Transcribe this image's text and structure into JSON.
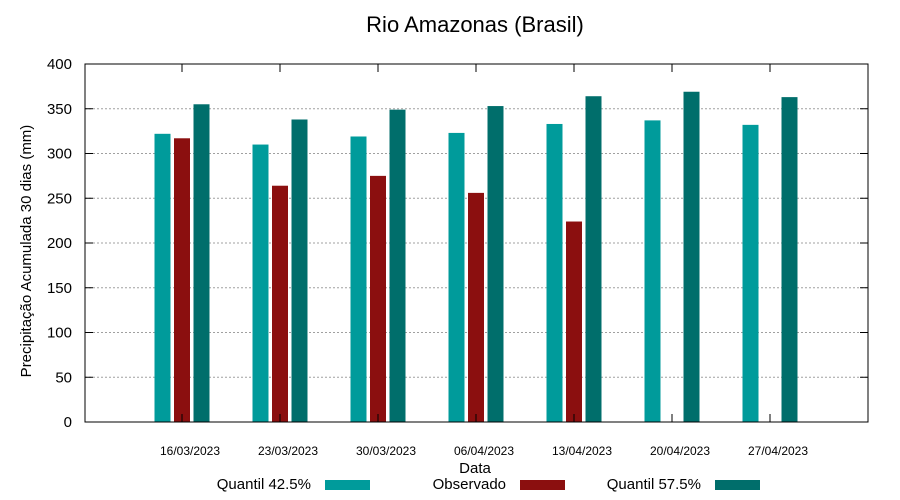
{
  "chart_data": {
    "type": "bar",
    "title": "Rio Amazonas (Brasil)",
    "xlabel": "Data",
    "ylabel": "Precipitação Acumulada 30 dias (mm)",
    "ylim": [
      0,
      400
    ],
    "yticks": [
      "0",
      "50",
      "100",
      "150",
      "200",
      "250",
      "300",
      "350",
      "400"
    ],
    "grid": true,
    "categories": [
      "16/03/2023",
      "23/03/2023",
      "30/03/2023",
      "06/04/2023",
      "13/04/2023",
      "20/04/2023",
      "27/04/2023"
    ],
    "series": [
      {
        "name": "Quantil 42.5%",
        "color": "#009b9b",
        "values": [
          322,
          310,
          319,
          323,
          333,
          337,
          332
        ]
      },
      {
        "name": "Observado",
        "color": "#8b0f0f",
        "values": [
          317,
          264,
          275,
          256,
          224,
          null,
          null
        ]
      },
      {
        "name": "Quantil 57.5%",
        "color": "#006e6b",
        "values": [
          355,
          338,
          349,
          353,
          364,
          369,
          363
        ]
      }
    ]
  }
}
